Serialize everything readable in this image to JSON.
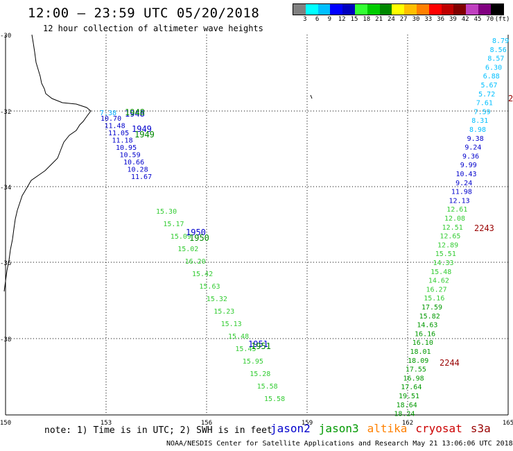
{
  "header": {
    "title": "12:00 – 23:59 UTC 05/20/2018",
    "subtitle": "12 hour collection of altimeter wave heights"
  },
  "color_scale": {
    "labels": [
      "3",
      "6",
      "9",
      "12",
      "15",
      "18",
      "21",
      "24",
      "27",
      "30",
      "33",
      "36",
      "39",
      "42",
      "45",
      "70",
      "(ft)"
    ],
    "colors": [
      "#808080",
      "#00ffff",
      "#00bfff",
      "#0000ff",
      "#0000bf",
      "#33ff33",
      "#00cc00",
      "#008800",
      "#ffff00",
      "#ffbf00",
      "#ff8000",
      "#ff0000",
      "#bf0000",
      "#800000",
      "#bf40bf",
      "#800080",
      "#000000"
    ]
  },
  "axes": {
    "lat_labels": [
      "-30",
      "-32",
      "-34",
      "-36",
      "-38",
      "-40"
    ],
    "lon_labels": [
      "150",
      "153",
      "156",
      "159",
      "162",
      "165"
    ]
  },
  "tracks": {
    "jason2_north": {
      "color": "#0000cc",
      "values": [
        "10.70",
        "11.48",
        "11.05",
        "11.18",
        "10.95",
        "10.59",
        "10.66",
        "10.28",
        "11.67"
      ]
    },
    "jason2_north_time": {
      "color": "#0000cc",
      "values": [
        "1948",
        "1949"
      ]
    },
    "jason3_north_time": {
      "color": "#008800",
      "values": [
        "1948",
        "1949"
      ]
    },
    "cyan_start": {
      "color": "#00aaff",
      "values": [
        "7.38"
      ]
    },
    "middle_track": {
      "color": "#33ff33",
      "values": [
        "15.30",
        "15.17",
        "15.09",
        "15.02",
        "16.20",
        "15.42",
        "15.63",
        "15.32",
        "15.23",
        "15.13",
        "15.48",
        "15.45",
        "15.95",
        "15.28",
        "15.58",
        "15.58"
      ]
    },
    "middle_times": {
      "jason2": "1950",
      "jason3": "1950",
      "jason2b": "1951",
      "jason3b": "1951"
    },
    "east_track": {
      "values": [
        "8.79",
        "8.56",
        "8.57",
        "6.30",
        "6.88",
        "5.67",
        "5.72",
        "7.61",
        "7.59",
        "8.31",
        "8.98",
        "9.38",
        "9.24",
        "9.36",
        "9.99",
        "10.43",
        "9.24",
        "11.98",
        "12.13",
        "12.61",
        "12.08",
        "12.51",
        "12.65",
        "12.89",
        "15.51",
        "14.33",
        "15.48",
        "14.62",
        "16.27",
        "15.16",
        "17.59",
        "15.82",
        "14.63",
        "16.16",
        "16.10",
        "18.01",
        "18.09",
        "17.55",
        "16.98",
        "17.64",
        "19.51",
        "18.64",
        "18.24"
      ]
    },
    "cryosat_times": [
      "2243",
      "2244",
      "2"
    ]
  },
  "note": "note: 1) Time is in UTC; 2) SWH is in feet",
  "satellites": [
    {
      "name": "jason2",
      "color": "#0000cc"
    },
    {
      "name": "jason3",
      "color": "#009900"
    },
    {
      "name": "altika",
      "color": "#ff8000"
    },
    {
      "name": "cryosat",
      "color": "#cc0000"
    },
    {
      "name": "s3a",
      "color": "#990000"
    }
  ],
  "footer": "NOAA/NESDIS Center for Satellite Applications and Research    May 21 13:06:06 UTC 2018"
}
